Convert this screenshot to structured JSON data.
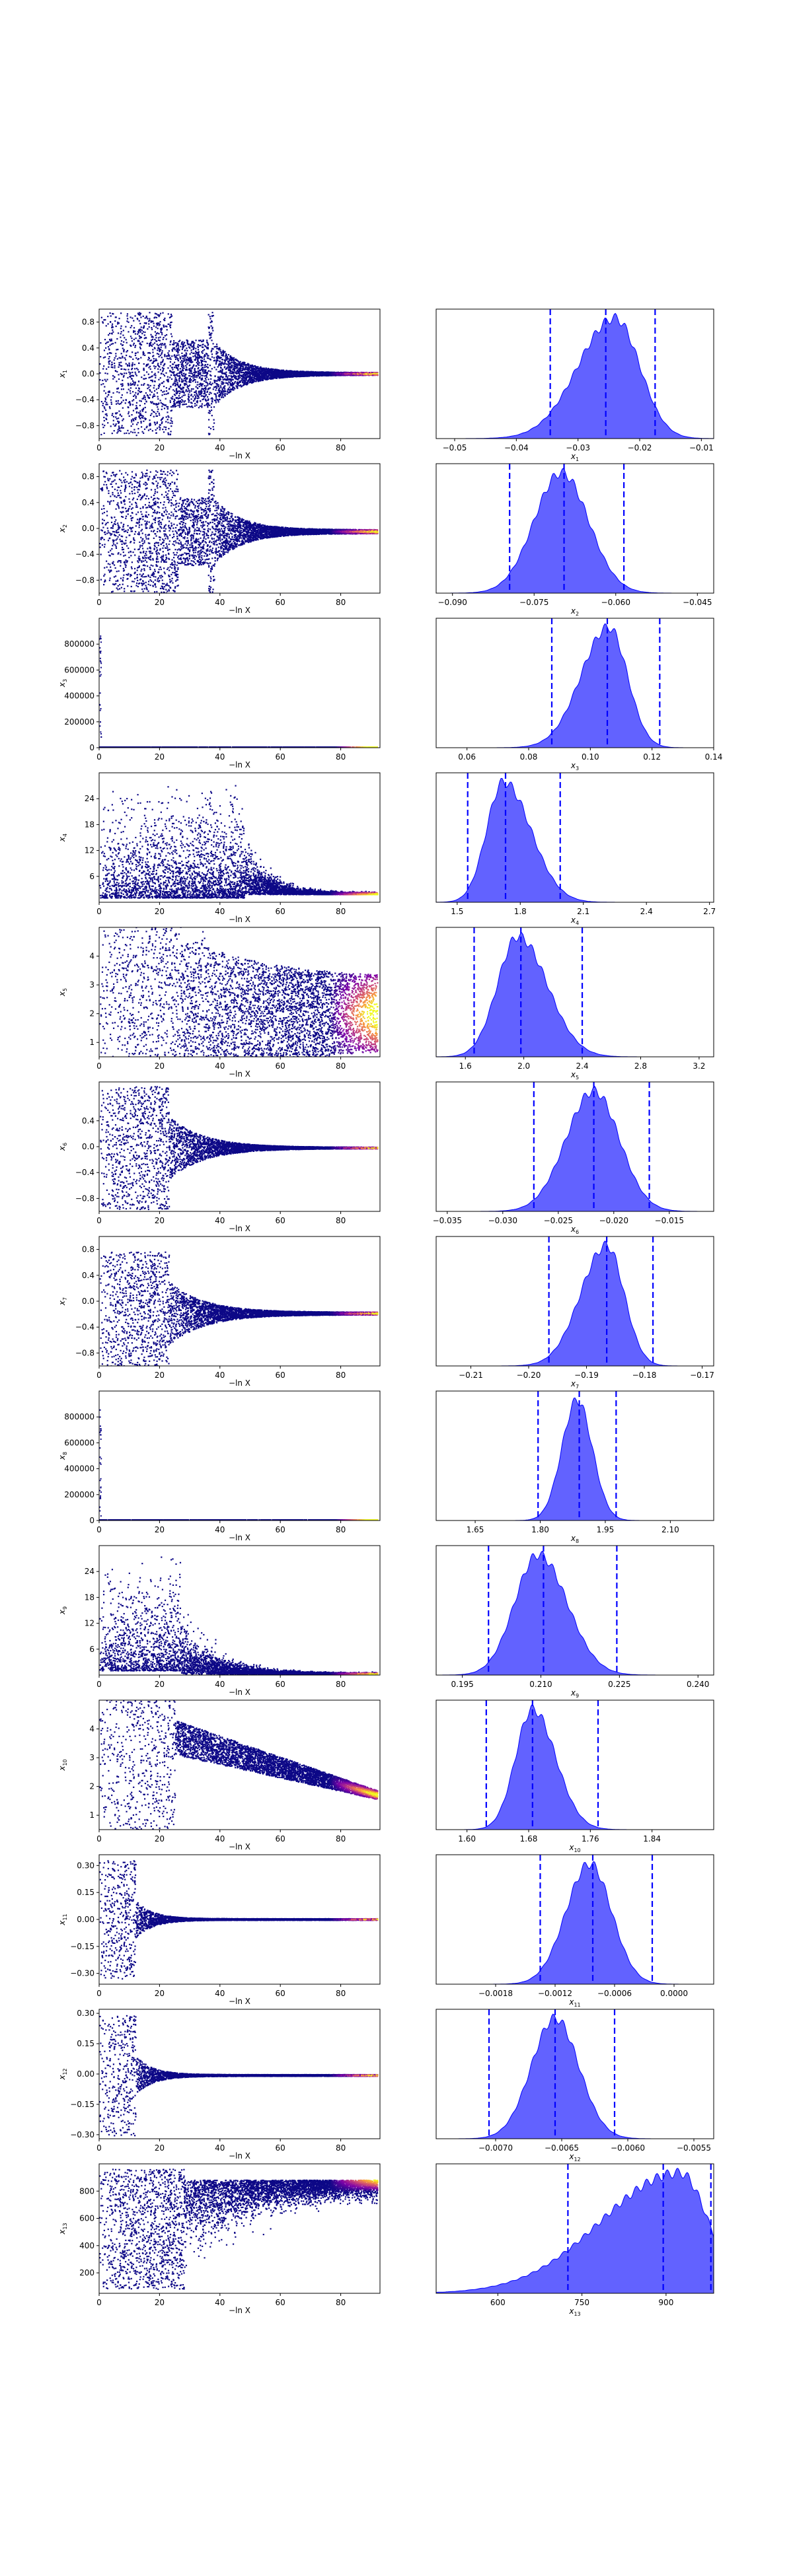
{
  "figure": {
    "colors": {
      "trace_low": "#0d0887",
      "trace_mid": "#cc4778",
      "trace_high": "#f0f921",
      "posterior_fill": "#5a5aff",
      "posterior_line": "#0000ff",
      "quantile_line": "#0000ff",
      "axes": "#000000",
      "background": "#ffffff"
    }
  },
  "chart_data": [
    {
      "type": "scatter",
      "row": 1,
      "panel": "trace",
      "xlabel": "−ln X",
      "ylabel": "x1",
      "xlim": [
        0,
        93
      ],
      "ylim": [
        -1.0,
        1.0
      ],
      "xticks": [
        "0",
        "20",
        "40",
        "60",
        "80"
      ],
      "yticks": [
        {
          "v": 0.8,
          "l": "0.8"
        },
        {
          "v": 0.4,
          "l": "0.4"
        },
        {
          "v": 0.0,
          "l": "0.0"
        },
        {
          "v": -0.4,
          "l": "−0.4"
        },
        {
          "v": -0.8,
          "l": "−0.8"
        }
      ],
      "converge": 0.0,
      "spread": 0.95,
      "gap_region": [
        24,
        36
      ],
      "tail_start": 38,
      "end_spread": 0.02
    },
    {
      "type": "area",
      "row": 1,
      "panel": "posterior",
      "xlabel": "x1",
      "xlim": [
        -0.053,
        -0.008
      ],
      "xticks": [
        {
          "v": -0.05,
          "l": "−0.05"
        },
        {
          "v": -0.04,
          "l": "−0.04"
        },
        {
          "v": -0.03,
          "l": "−0.03"
        },
        {
          "v": -0.02,
          "l": "−0.02"
        },
        {
          "v": -0.01,
          "l": "−0.01"
        }
      ],
      "quantiles": [
        -0.0345,
        -0.0255,
        -0.0175
      ],
      "peak": -0.024,
      "width_left": 0.006,
      "width_right": 0.004
    },
    {
      "type": "scatter",
      "row": 2,
      "panel": "trace",
      "xlabel": "−ln X",
      "ylabel": "x2",
      "xlim": [
        0,
        93
      ],
      "ylim": [
        -1.0,
        1.0
      ],
      "xticks": [
        "0",
        "20",
        "40",
        "60",
        "80"
      ],
      "yticks": [
        {
          "v": 0.8,
          "l": "0.8"
        },
        {
          "v": 0.4,
          "l": "0.4"
        },
        {
          "v": 0.0,
          "l": "0.0"
        },
        {
          "v": -0.4,
          "l": "−0.4"
        },
        {
          "v": -0.8,
          "l": "−0.8"
        }
      ],
      "converge": -0.05,
      "spread": 0.95,
      "gap_region": [
        26,
        36
      ],
      "tail_start": 38,
      "end_spread": 0.03
    },
    {
      "type": "area",
      "row": 2,
      "panel": "posterior",
      "xlabel": "x2",
      "xlim": [
        -0.093,
        -0.042
      ],
      "xticks": [
        {
          "v": -0.09,
          "l": "−0.090"
        },
        {
          "v": -0.075,
          "l": "−0.075"
        },
        {
          "v": -0.06,
          "l": "−0.060"
        },
        {
          "v": -0.045,
          "l": "−0.045"
        }
      ],
      "quantiles": [
        -0.0795,
        -0.0695,
        -0.0585
      ],
      "peak": -0.07,
      "width_left": 0.005,
      "width_right": 0.005
    },
    {
      "type": "scatter",
      "row": 3,
      "panel": "trace",
      "xlabel": "−ln X",
      "ylabel": "x3",
      "xlim": [
        0,
        93
      ],
      "ylim": [
        0,
        1000000
      ],
      "xticks": [
        "0",
        "20",
        "40",
        "60",
        "80"
      ],
      "yticks": [
        {
          "v": 800000,
          "l": "800000"
        },
        {
          "v": 600000,
          "l": "600000"
        },
        {
          "v": 400000,
          "l": "400000"
        },
        {
          "v": 200000,
          "l": "200000"
        },
        {
          "v": 0,
          "l": "0"
        }
      ],
      "converge": 0.1,
      "spread": 0,
      "gap_region": [
        0,
        0
      ],
      "tail_start": 1,
      "end_spread": 0,
      "flat": true
    },
    {
      "type": "area",
      "row": 3,
      "panel": "posterior",
      "xlabel": "x3",
      "xlim": [
        0.05,
        0.14
      ],
      "xticks": [
        {
          "v": 0.06,
          "l": "0.06"
        },
        {
          "v": 0.08,
          "l": "0.08"
        },
        {
          "v": 0.1,
          "l": "0.10"
        },
        {
          "v": 0.12,
          "l": "0.12"
        },
        {
          "v": 0.14,
          "l": "0.14"
        }
      ],
      "quantiles": [
        0.0875,
        0.1055,
        0.1225
      ],
      "peak": 0.106,
      "width_left": 0.009,
      "width_right": 0.006
    },
    {
      "type": "scatter",
      "row": 4,
      "panel": "trace",
      "xlabel": "−ln X",
      "ylabel": "x4",
      "xlim": [
        0,
        93
      ],
      "ylim": [
        0,
        30
      ],
      "xticks": [
        "0",
        "20",
        "40",
        "60",
        "80"
      ],
      "yticks": [
        {
          "v": 24,
          "l": "24"
        },
        {
          "v": 18,
          "l": "18"
        },
        {
          "v": 12,
          "l": "12"
        },
        {
          "v": 6,
          "l": "6"
        }
      ],
      "converge": 1.8,
      "spread": 28,
      "gap_region": [
        28,
        33
      ],
      "tail_start": 48,
      "end_spread": 0.5,
      "positive": true
    },
    {
      "type": "area",
      "row": 4,
      "panel": "posterior",
      "xlabel": "x4",
      "xlim": [
        1.4,
        2.72
      ],
      "xticks": [
        {
          "v": 1.5,
          "l": "1.5"
        },
        {
          "v": 1.8,
          "l": "1.8"
        },
        {
          "v": 2.1,
          "l": "2.1"
        },
        {
          "v": 2.4,
          "l": "2.4"
        },
        {
          "v": 2.7,
          "l": "2.7"
        }
      ],
      "quantiles": [
        1.55,
        1.73,
        1.99
      ],
      "peak": 1.72,
      "width_left": 0.08,
      "width_right": 0.13
    },
    {
      "type": "scatter",
      "row": 5,
      "panel": "trace",
      "xlabel": "−ln X",
      "ylabel": "x5",
      "xlim": [
        0,
        93
      ],
      "ylim": [
        0.5,
        5.0
      ],
      "xticks": [
        "0",
        "20",
        "40",
        "60",
        "80"
      ],
      "yticks": [
        {
          "v": 4,
          "l": "4"
        },
        {
          "v": 3,
          "l": "3"
        },
        {
          "v": 2,
          "l": "2"
        },
        {
          "v": 1,
          "l": "1"
        }
      ],
      "converge": 2.0,
      "spread": 4.5,
      "gap_region": [
        27,
        33
      ],
      "tail_start": 35,
      "end_spread": 1.2,
      "wide_tail": true
    },
    {
      "type": "area",
      "row": 5,
      "panel": "posterior",
      "xlabel": "x5",
      "xlim": [
        1.4,
        3.3
      ],
      "xticks": [
        {
          "v": 1.6,
          "l": "1.6"
        },
        {
          "v": 2.0,
          "l": "2.0"
        },
        {
          "v": 2.4,
          "l": "2.4"
        },
        {
          "v": 2.8,
          "l": "2.8"
        },
        {
          "v": 3.2,
          "l": "3.2"
        }
      ],
      "quantiles": [
        1.66,
        1.98,
        2.4
      ],
      "peak": 1.96,
      "width_left": 0.14,
      "width_right": 0.2
    },
    {
      "type": "scatter",
      "row": 6,
      "panel": "trace",
      "xlabel": "−ln X",
      "ylabel": "x6",
      "xlim": [
        0,
        93
      ],
      "ylim": [
        -1.0,
        1.0
      ],
      "xticks": [
        "0",
        "20",
        "40",
        "60",
        "80"
      ],
      "yticks": [
        {
          "v": 0.4,
          "l": "0.4"
        },
        {
          "v": 0.0,
          "l": "0.0"
        },
        {
          "v": -0.4,
          "l": "−0.4"
        },
        {
          "v": -0.8,
          "l": "−0.8"
        }
      ],
      "converge": -0.02,
      "spread": 0.95,
      "gap_region": [
        0,
        0
      ],
      "tail_start": 23,
      "end_spread": 0.01
    },
    {
      "type": "area",
      "row": 6,
      "panel": "posterior",
      "xlabel": "x6",
      "xlim": [
        -0.036,
        -0.011
      ],
      "xticks": [
        {
          "v": -0.035,
          "l": "−0.035"
        },
        {
          "v": -0.03,
          "l": "−0.030"
        },
        {
          "v": -0.025,
          "l": "−0.025"
        },
        {
          "v": -0.02,
          "l": "−0.020"
        },
        {
          "v": -0.015,
          "l": "−0.015"
        }
      ],
      "quantiles": [
        -0.0272,
        -0.0218,
        -0.0168
      ],
      "peak": -0.0218,
      "width_left": 0.0025,
      "width_right": 0.0023
    },
    {
      "type": "scatter",
      "row": 7,
      "panel": "trace",
      "xlabel": "−ln X",
      "ylabel": "x7",
      "xlim": [
        0,
        93
      ],
      "ylim": [
        -1.0,
        1.0
      ],
      "xticks": [
        "0",
        "20",
        "40",
        "60",
        "80"
      ],
      "yticks": [
        {
          "v": 0.8,
          "l": "0.8"
        },
        {
          "v": 0.4,
          "l": "0.4"
        },
        {
          "v": 0.0,
          "l": "0.0"
        },
        {
          "v": -0.4,
          "l": "−0.4"
        },
        {
          "v": -0.8,
          "l": "−0.8"
        }
      ],
      "converge": -0.19,
      "spread": 0.95,
      "gap_region": [
        0,
        0
      ],
      "tail_start": 23,
      "end_spread": 0.02
    },
    {
      "type": "area",
      "row": 7,
      "panel": "posterior",
      "xlabel": "x7",
      "xlim": [
        -0.216,
        -0.168
      ],
      "xticks": [
        {
          "v": -0.21,
          "l": "−0.21"
        },
        {
          "v": -0.2,
          "l": "−0.20"
        },
        {
          "v": -0.19,
          "l": "−0.19"
        },
        {
          "v": -0.18,
          "l": "−0.18"
        },
        {
          "v": -0.17,
          "l": "−0.17"
        }
      ],
      "quantiles": [
        -0.1965,
        -0.1865,
        -0.1785
      ],
      "peak": -0.1865,
      "width_left": 0.0045,
      "width_right": 0.003
    },
    {
      "type": "scatter",
      "row": 8,
      "panel": "trace",
      "xlabel": "−ln X",
      "ylabel": "x8",
      "xlim": [
        0,
        93
      ],
      "ylim": [
        0,
        1000000
      ],
      "xticks": [
        "0",
        "20",
        "40",
        "60",
        "80"
      ],
      "yticks": [
        {
          "v": 800000,
          "l": "800000"
        },
        {
          "v": 600000,
          "l": "600000"
        },
        {
          "v": 400000,
          "l": "400000"
        },
        {
          "v": 200000,
          "l": "200000"
        },
        {
          "v": 0,
          "l": "0"
        }
      ],
      "converge": 1.9,
      "spread": 0,
      "gap_region": [
        0,
        0
      ],
      "tail_start": 1,
      "end_spread": 0,
      "flat": true
    },
    {
      "type": "area",
      "row": 8,
      "panel": "posterior",
      "xlabel": "x8",
      "xlim": [
        1.56,
        2.2
      ],
      "xticks": [
        {
          "v": 1.65,
          "l": "1.65"
        },
        {
          "v": 1.8,
          "l": "1.80"
        },
        {
          "v": 1.95,
          "l": "1.95"
        },
        {
          "v": 2.1,
          "l": "2.10"
        }
      ],
      "quantiles": [
        1.795,
        1.89,
        1.975
      ],
      "peak": 1.885,
      "width_left": 0.035,
      "width_right": 0.035
    },
    {
      "type": "scatter",
      "row": 9,
      "panel": "trace",
      "xlabel": "−ln X",
      "ylabel": "x9",
      "xlim": [
        0,
        93
      ],
      "ylim": [
        0,
        30
      ],
      "xticks": [
        "0",
        "20",
        "40",
        "60",
        "80"
      ],
      "yticks": [
        {
          "v": 24,
          "l": "24"
        },
        {
          "v": 18,
          "l": "18"
        },
        {
          "v": 12,
          "l": "12"
        },
        {
          "v": 6,
          "l": "6"
        }
      ],
      "converge": 0.21,
      "spread": 28,
      "gap_region": [
        0,
        0
      ],
      "tail_start": 27,
      "end_spread": 0.3,
      "positive": true
    },
    {
      "type": "area",
      "row": 9,
      "panel": "posterior",
      "xlabel": "x9",
      "xlim": [
        0.19,
        0.243
      ],
      "xticks": [
        {
          "v": 0.195,
          "l": "0.195"
        },
        {
          "v": 0.21,
          "l": "0.210"
        },
        {
          "v": 0.225,
          "l": "0.225"
        },
        {
          "v": 0.24,
          "l": "0.240"
        }
      ],
      "quantiles": [
        0.2,
        0.2105,
        0.2245
      ],
      "peak": 0.2095,
      "width_left": 0.0045,
      "width_right": 0.0055
    },
    {
      "type": "scatter",
      "row": 10,
      "panel": "trace",
      "xlabel": "−ln X",
      "ylabel": "x10",
      "xlim": [
        0,
        93
      ],
      "ylim": [
        0.5,
        5.0
      ],
      "xticks": [
        "0",
        "20",
        "40",
        "60",
        "80"
      ],
      "yticks": [
        {
          "v": 4,
          "l": "4"
        },
        {
          "v": 3,
          "l": "3"
        },
        {
          "v": 2,
          "l": "2"
        },
        {
          "v": 1,
          "l": "1"
        }
      ],
      "converge": 1.7,
      "spread": 4.5,
      "gap_region": [
        0,
        0
      ],
      "tail_start": 25,
      "end_spread": 0.15,
      "descending": true
    },
    {
      "type": "area",
      "row": 10,
      "panel": "posterior",
      "xlabel": "x10",
      "xlim": [
        1.56,
        1.92
      ],
      "xticks": [
        {
          "v": 1.6,
          "l": "1.60"
        },
        {
          "v": 1.68,
          "l": "1.68"
        },
        {
          "v": 1.76,
          "l": "1.76"
        },
        {
          "v": 1.84,
          "l": "1.84"
        }
      ],
      "quantiles": [
        1.625,
        1.685,
        1.77
      ],
      "peak": 1.685,
      "width_left": 0.022,
      "width_right": 0.03
    },
    {
      "type": "scatter",
      "row": 11,
      "panel": "trace",
      "xlabel": "−ln X",
      "ylabel": "x11",
      "xlim": [
        0,
        93
      ],
      "ylim": [
        -0.36,
        0.36
      ],
      "xticks": [
        "0",
        "20",
        "40",
        "60",
        "80"
      ],
      "yticks": [
        {
          "v": 0.3,
          "l": "0.30"
        },
        {
          "v": 0.15,
          "l": "0.15"
        },
        {
          "v": 0.0,
          "l": "0.00"
        },
        {
          "v": -0.15,
          "l": "−0.15"
        },
        {
          "v": -0.3,
          "l": "−0.30"
        }
      ],
      "converge": 0.0,
      "spread": 0.33,
      "gap_region": [
        0,
        0
      ],
      "tail_start": 12,
      "end_spread": 0.004,
      "narrow": true
    },
    {
      "type": "area",
      "row": 11,
      "panel": "posterior",
      "xlabel": "x11",
      "xlim": [
        -0.0024,
        0.0004
      ],
      "xticks": [
        {
          "v": -0.0018,
          "l": "−0.0018"
        },
        {
          "v": -0.0012,
          "l": "−0.0012"
        },
        {
          "v": -0.0006,
          "l": "−0.0006"
        },
        {
          "v": 0.0,
          "l": "0.0000"
        }
      ],
      "quantiles": [
        -0.00135,
        -0.00082,
        -0.00022
      ],
      "peak": -0.00085,
      "width_left": 0.00024,
      "width_right": 0.00022
    },
    {
      "type": "scatter",
      "row": 12,
      "panel": "trace",
      "xlabel": "−ln X",
      "ylabel": "x12",
      "xlim": [
        0,
        93
      ],
      "ylim": [
        -0.32,
        0.32
      ],
      "xticks": [
        "0",
        "20",
        "40",
        "60",
        "80"
      ],
      "yticks": [
        {
          "v": 0.3,
          "l": "0.30"
        },
        {
          "v": 0.15,
          "l": "0.15"
        },
        {
          "v": 0.0,
          "l": "0.00"
        },
        {
          "v": -0.15,
          "l": "−0.15"
        },
        {
          "v": -0.3,
          "l": "−0.30"
        }
      ],
      "converge": -0.007,
      "spread": 0.3,
      "gap_region": [
        0,
        0
      ],
      "tail_start": 12,
      "end_spread": 0.004,
      "narrow": true
    },
    {
      "type": "area",
      "row": 12,
      "panel": "posterior",
      "xlabel": "x12",
      "xlim": [
        -0.00745,
        -0.00535
      ],
      "xticks": [
        {
          "v": -0.007,
          "l": "−0.0070"
        },
        {
          "v": -0.0065,
          "l": "−0.0065"
        },
        {
          "v": -0.006,
          "l": "−0.0060"
        },
        {
          "v": -0.0055,
          "l": "−0.0055"
        }
      ],
      "quantiles": [
        -0.00705,
        -0.00655,
        -0.0061
      ],
      "peak": -0.00655,
      "width_left": 0.00018,
      "width_right": 0.00018
    },
    {
      "type": "scatter",
      "row": 13,
      "panel": "trace",
      "xlabel": "−ln X",
      "ylabel": "x13",
      "xlim": [
        0,
        93
      ],
      "ylim": [
        50,
        1000
      ],
      "xticks": [
        "0",
        "20",
        "40",
        "60",
        "80"
      ],
      "yticks": [
        {
          "v": 800,
          "l": "800"
        },
        {
          "v": 600,
          "l": "600"
        },
        {
          "v": 400,
          "l": "400"
        },
        {
          "v": 200,
          "l": "200"
        }
      ],
      "converge": 900,
      "spread": 900,
      "gap_region": [
        0,
        0
      ],
      "tail_start": 40,
      "end_spread": 80,
      "top_heavy": true
    },
    {
      "type": "area",
      "row": 13,
      "panel": "posterior",
      "xlabel": "x13",
      "xlim": [
        490,
        985
      ],
      "xticks": [
        {
          "v": 600,
          "l": "600"
        },
        {
          "v": 750,
          "l": "750"
        },
        {
          "v": 900,
          "l": "900"
        }
      ],
      "quantiles": [
        725,
        895,
        980
      ],
      "peak": 925,
      "width_left": 140,
      "width_right": 50,
      "skewed": true
    }
  ]
}
